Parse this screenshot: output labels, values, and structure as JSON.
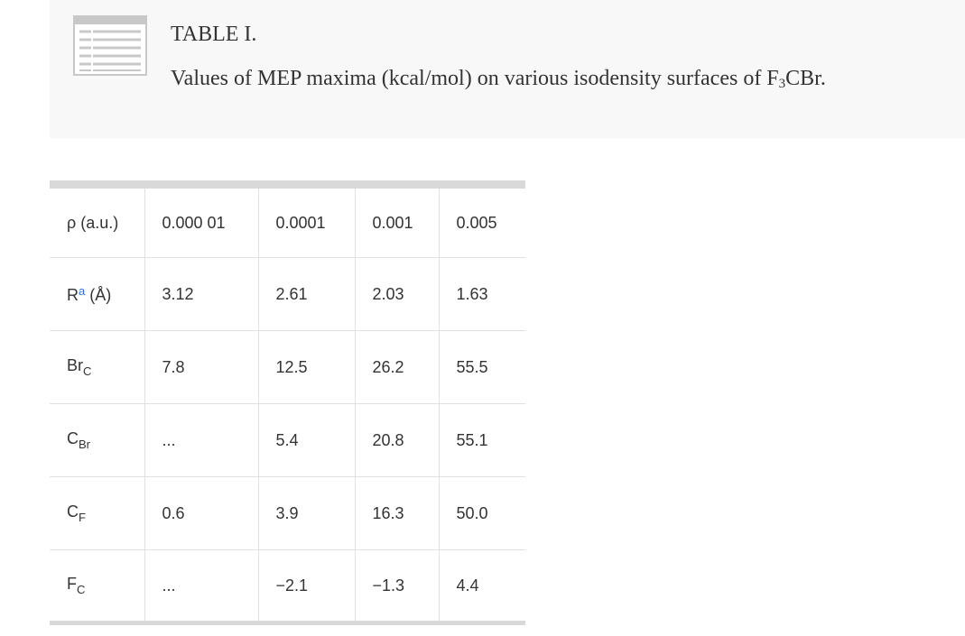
{
  "caption": {
    "icon": "table-icon",
    "label": "TABLE I.",
    "text_before": "Values of MEP maxima (kcal/mol) on various isodensity surfaces of F",
    "text_sub": "3",
    "text_after": "CBr."
  },
  "table": {
    "header": {
      "label": "ρ (a.u.)",
      "values": [
        "0.000 01",
        "0.0001",
        "0.001",
        "0.005"
      ]
    },
    "rows": [
      {
        "label": "R",
        "sup": "a",
        "label_after": " (Å)",
        "values": [
          "3.12",
          "2.61",
          "2.03",
          "1.63"
        ]
      },
      {
        "label": "Br",
        "sub": "C",
        "values": [
          "7.8",
          "12.5",
          "26.2",
          "55.5"
        ]
      },
      {
        "label": "C",
        "sub": "Br",
        "values": [
          "...",
          "5.4",
          "20.8",
          "55.1"
        ]
      },
      {
        "label": "C",
        "sub": "F",
        "values": [
          "0.6",
          "3.9",
          "16.3",
          "50.0"
        ]
      },
      {
        "label": "F",
        "sub": "C",
        "values": [
          "...",
          "−2.1",
          "−1.3",
          "4.4"
        ]
      }
    ]
  }
}
